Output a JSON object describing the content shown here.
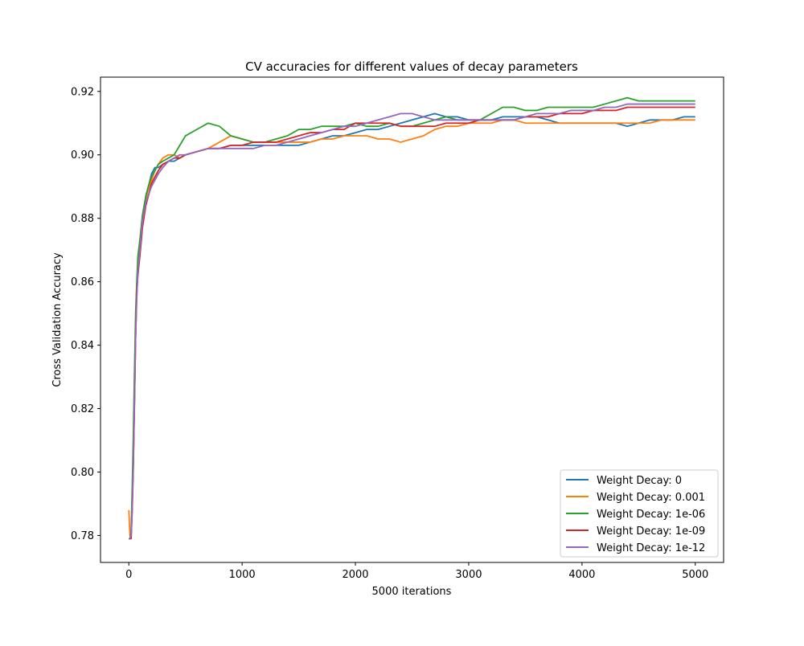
{
  "chart_data": {
    "type": "line",
    "title": "CV accuracies for different values of decay parameters",
    "xlabel": "5000 iterations",
    "ylabel": "Cross Validation Accuracy",
    "xlim": [
      -250,
      5250
    ],
    "ylim": [
      0.7715,
      0.9245
    ],
    "xticks": [
      0,
      1000,
      2000,
      3000,
      4000,
      5000
    ],
    "xtick_labels": [
      "0",
      "1000",
      "2000",
      "3000",
      "4000",
      "5000"
    ],
    "yticks": [
      0.78,
      0.8,
      0.82,
      0.84,
      0.86,
      0.88,
      0.9,
      0.92
    ],
    "ytick_labels": [
      "0.78",
      "0.80",
      "0.82",
      "0.84",
      "0.86",
      "0.88",
      "0.90",
      "0.92"
    ],
    "grid": false,
    "legend_position": "lower-right",
    "series": [
      {
        "name": "Weight Decay: 0",
        "color": "#1f77b4",
        "x": [
          0,
          10,
          20,
          30,
          40,
          50,
          60,
          70,
          80,
          100,
          120,
          150,
          180,
          200,
          230,
          260,
          300,
          350,
          400,
          450,
          500,
          600,
          700,
          800,
          900,
          1000,
          1100,
          1200,
          1300,
          1400,
          1500,
          1600,
          1700,
          1800,
          1900,
          2000,
          2100,
          2200,
          2300,
          2400,
          2500,
          2600,
          2700,
          2800,
          2900,
          3000,
          3100,
          3200,
          3300,
          3400,
          3500,
          3600,
          3700,
          3800,
          3900,
          4000,
          4100,
          4200,
          4300,
          4400,
          4500,
          4600,
          4700,
          4800,
          4900,
          5000
        ],
        "values": [
          0.779,
          0.779,
          0.78,
          0.79,
          0.805,
          0.825,
          0.845,
          0.858,
          0.866,
          0.873,
          0.88,
          0.887,
          0.891,
          0.894,
          0.896,
          0.896,
          0.897,
          0.898,
          0.898,
          0.899,
          0.9,
          0.901,
          0.902,
          0.902,
          0.903,
          0.903,
          0.903,
          0.903,
          0.903,
          0.903,
          0.903,
          0.904,
          0.905,
          0.906,
          0.906,
          0.907,
          0.908,
          0.908,
          0.909,
          0.91,
          0.911,
          0.912,
          0.913,
          0.912,
          0.912,
          0.911,
          0.911,
          0.911,
          0.912,
          0.912,
          0.912,
          0.912,
          0.911,
          0.91,
          0.91,
          0.91,
          0.91,
          0.91,
          0.91,
          0.909,
          0.91,
          0.911,
          0.911,
          0.911,
          0.912,
          0.912
        ]
      },
      {
        "name": "Weight Decay: 0.001",
        "color": "#ff7f0e",
        "x": [
          0,
          10,
          20,
          30,
          40,
          50,
          60,
          70,
          80,
          100,
          120,
          150,
          180,
          200,
          230,
          260,
          300,
          350,
          400,
          450,
          500,
          600,
          700,
          800,
          900,
          1000,
          1100,
          1200,
          1300,
          1400,
          1500,
          1600,
          1700,
          1800,
          1900,
          2000,
          2100,
          2200,
          2300,
          2400,
          2500,
          2600,
          2700,
          2800,
          2900,
          3000,
          3100,
          3200,
          3300,
          3400,
          3500,
          3600,
          3700,
          3800,
          3900,
          4000,
          4100,
          4200,
          4300,
          4400,
          4500,
          4600,
          4700,
          4800,
          4900,
          5000
        ],
        "values": [
          0.788,
          0.78,
          0.779,
          0.788,
          0.803,
          0.822,
          0.842,
          0.855,
          0.864,
          0.872,
          0.88,
          0.886,
          0.89,
          0.892,
          0.895,
          0.897,
          0.899,
          0.9,
          0.9,
          0.899,
          0.9,
          0.901,
          0.902,
          0.904,
          0.906,
          0.905,
          0.904,
          0.904,
          0.904,
          0.904,
          0.904,
          0.904,
          0.905,
          0.905,
          0.906,
          0.906,
          0.906,
          0.905,
          0.905,
          0.904,
          0.905,
          0.906,
          0.908,
          0.909,
          0.909,
          0.91,
          0.91,
          0.91,
          0.911,
          0.911,
          0.91,
          0.91,
          0.91,
          0.91,
          0.91,
          0.91,
          0.91,
          0.91,
          0.91,
          0.91,
          0.91,
          0.91,
          0.911,
          0.911,
          0.911,
          0.911
        ]
      },
      {
        "name": "Weight Decay: 1e-06",
        "color": "#2ca02c",
        "x": [
          0,
          10,
          20,
          30,
          40,
          50,
          60,
          70,
          80,
          100,
          120,
          150,
          180,
          200,
          230,
          260,
          300,
          350,
          400,
          450,
          500,
          600,
          700,
          800,
          900,
          1000,
          1100,
          1200,
          1300,
          1400,
          1500,
          1600,
          1700,
          1800,
          1900,
          2000,
          2100,
          2200,
          2300,
          2400,
          2500,
          2600,
          2700,
          2800,
          2900,
          3000,
          3100,
          3200,
          3300,
          3400,
          3500,
          3600,
          3700,
          3800,
          3900,
          4000,
          4100,
          4200,
          4300,
          4400,
          4500,
          4600,
          4700,
          4800,
          4900,
          5000
        ],
        "values": [
          0.779,
          0.779,
          0.781,
          0.795,
          0.812,
          0.832,
          0.85,
          0.86,
          0.868,
          0.874,
          0.881,
          0.887,
          0.891,
          0.893,
          0.895,
          0.897,
          0.898,
          0.899,
          0.9,
          0.903,
          0.906,
          0.908,
          0.91,
          0.909,
          0.906,
          0.905,
          0.904,
          0.904,
          0.905,
          0.906,
          0.908,
          0.908,
          0.909,
          0.909,
          0.909,
          0.91,
          0.909,
          0.909,
          0.91,
          0.909,
          0.909,
          0.91,
          0.911,
          0.912,
          0.911,
          0.911,
          0.911,
          0.913,
          0.915,
          0.915,
          0.914,
          0.914,
          0.915,
          0.915,
          0.915,
          0.915,
          0.915,
          0.916,
          0.917,
          0.918,
          0.917,
          0.917,
          0.917,
          0.917,
          0.917,
          0.917
        ]
      },
      {
        "name": "Weight Decay: 1e-09",
        "color": "#d62728",
        "x": [
          0,
          10,
          20,
          30,
          40,
          50,
          60,
          70,
          80,
          100,
          120,
          150,
          180,
          200,
          230,
          260,
          300,
          350,
          400,
          450,
          500,
          600,
          700,
          800,
          900,
          1000,
          1100,
          1200,
          1300,
          1400,
          1500,
          1600,
          1700,
          1800,
          1900,
          2000,
          2100,
          2200,
          2300,
          2400,
          2500,
          2600,
          2700,
          2800,
          2900,
          3000,
          3100,
          3200,
          3300,
          3400,
          3500,
          3600,
          3700,
          3800,
          3900,
          4000,
          4100,
          4200,
          4300,
          4400,
          4500,
          4600,
          4700,
          4800,
          4900,
          5000
        ],
        "values": [
          0.779,
          0.779,
          0.779,
          0.788,
          0.802,
          0.822,
          0.843,
          0.857,
          0.862,
          0.869,
          0.877,
          0.884,
          0.888,
          0.891,
          0.893,
          0.895,
          0.897,
          0.898,
          0.899,
          0.899,
          0.9,
          0.901,
          0.902,
          0.902,
          0.903,
          0.903,
          0.904,
          0.904,
          0.904,
          0.905,
          0.906,
          0.907,
          0.907,
          0.908,
          0.908,
          0.91,
          0.91,
          0.91,
          0.91,
          0.909,
          0.909,
          0.909,
          0.909,
          0.91,
          0.91,
          0.91,
          0.911,
          0.911,
          0.911,
          0.911,
          0.912,
          0.912,
          0.912,
          0.913,
          0.913,
          0.913,
          0.914,
          0.914,
          0.914,
          0.915,
          0.915,
          0.915,
          0.915,
          0.915,
          0.915,
          0.915
        ]
      },
      {
        "name": "Weight Decay: 1e-12",
        "color": "#9467bd",
        "x": [
          0,
          10,
          20,
          30,
          40,
          50,
          60,
          70,
          80,
          100,
          120,
          150,
          180,
          200,
          230,
          260,
          300,
          350,
          400,
          450,
          500,
          600,
          700,
          800,
          900,
          1000,
          1100,
          1200,
          1300,
          1400,
          1500,
          1600,
          1700,
          1800,
          1900,
          2000,
          2100,
          2200,
          2300,
          2400,
          2500,
          2600,
          2700,
          2800,
          2900,
          3000,
          3100,
          3200,
          3300,
          3400,
          3500,
          3600,
          3700,
          3800,
          3900,
          4000,
          4100,
          4200,
          4300,
          4400,
          4500,
          4600,
          4700,
          4800,
          4900,
          5000
        ],
        "values": [
          0.779,
          0.779,
          0.78,
          0.789,
          0.804,
          0.823,
          0.843,
          0.855,
          0.863,
          0.871,
          0.879,
          0.885,
          0.888,
          0.89,
          0.892,
          0.894,
          0.896,
          0.898,
          0.899,
          0.9,
          0.9,
          0.901,
          0.902,
          0.902,
          0.902,
          0.902,
          0.902,
          0.903,
          0.903,
          0.904,
          0.905,
          0.906,
          0.907,
          0.908,
          0.909,
          0.909,
          0.91,
          0.911,
          0.912,
          0.913,
          0.913,
          0.912,
          0.911,
          0.911,
          0.911,
          0.911,
          0.911,
          0.911,
          0.911,
          0.911,
          0.912,
          0.913,
          0.913,
          0.913,
          0.914,
          0.914,
          0.914,
          0.915,
          0.915,
          0.916,
          0.916,
          0.916,
          0.916,
          0.916,
          0.916,
          0.916
        ]
      }
    ]
  }
}
